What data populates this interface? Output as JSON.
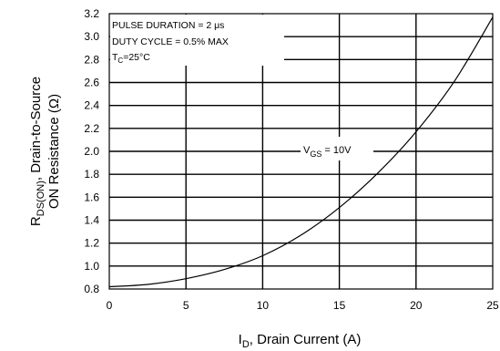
{
  "chart_data": {
    "type": "line",
    "xlim": [
      0,
      25
    ],
    "ylim": [
      0.8,
      3.2
    ],
    "x_ticks": [
      "0",
      "5",
      "10",
      "15",
      "20",
      "25"
    ],
    "y_ticks": [
      "0.8",
      "1.0",
      "1.2",
      "1.4",
      "1.6",
      "1.8",
      "2.0",
      "2.2",
      "2.4",
      "2.6",
      "2.8",
      "3.0",
      "3.2"
    ],
    "grid": true,
    "xlabel": {
      "main": "I",
      "sub": "D",
      "rest": ", Drain Current (A)"
    },
    "ylabel": {
      "main": "R",
      "sub": "DS(ON)",
      "rest": ", Drain-to-Source",
      "line2": "ON Resistance (Ω)"
    },
    "annotations": {
      "line1": "PULSE DURATION = 2 μs",
      "line2": "DUTY CYCLE = 0.5% MAX",
      "line3_main": "T",
      "line3_sub": "C",
      "line3_rest": "=25°C"
    },
    "series": [
      {
        "name": {
          "main": "V",
          "sub": "GS",
          "rest": " = 10V"
        },
        "x": [
          0,
          2.5,
          5,
          7.5,
          10,
          12.5,
          15,
          17.5,
          20,
          22.5,
          25
        ],
        "y": [
          0.82,
          0.84,
          0.89,
          0.97,
          1.09,
          1.27,
          1.51,
          1.81,
          2.17,
          2.61,
          3.17
        ]
      }
    ]
  }
}
